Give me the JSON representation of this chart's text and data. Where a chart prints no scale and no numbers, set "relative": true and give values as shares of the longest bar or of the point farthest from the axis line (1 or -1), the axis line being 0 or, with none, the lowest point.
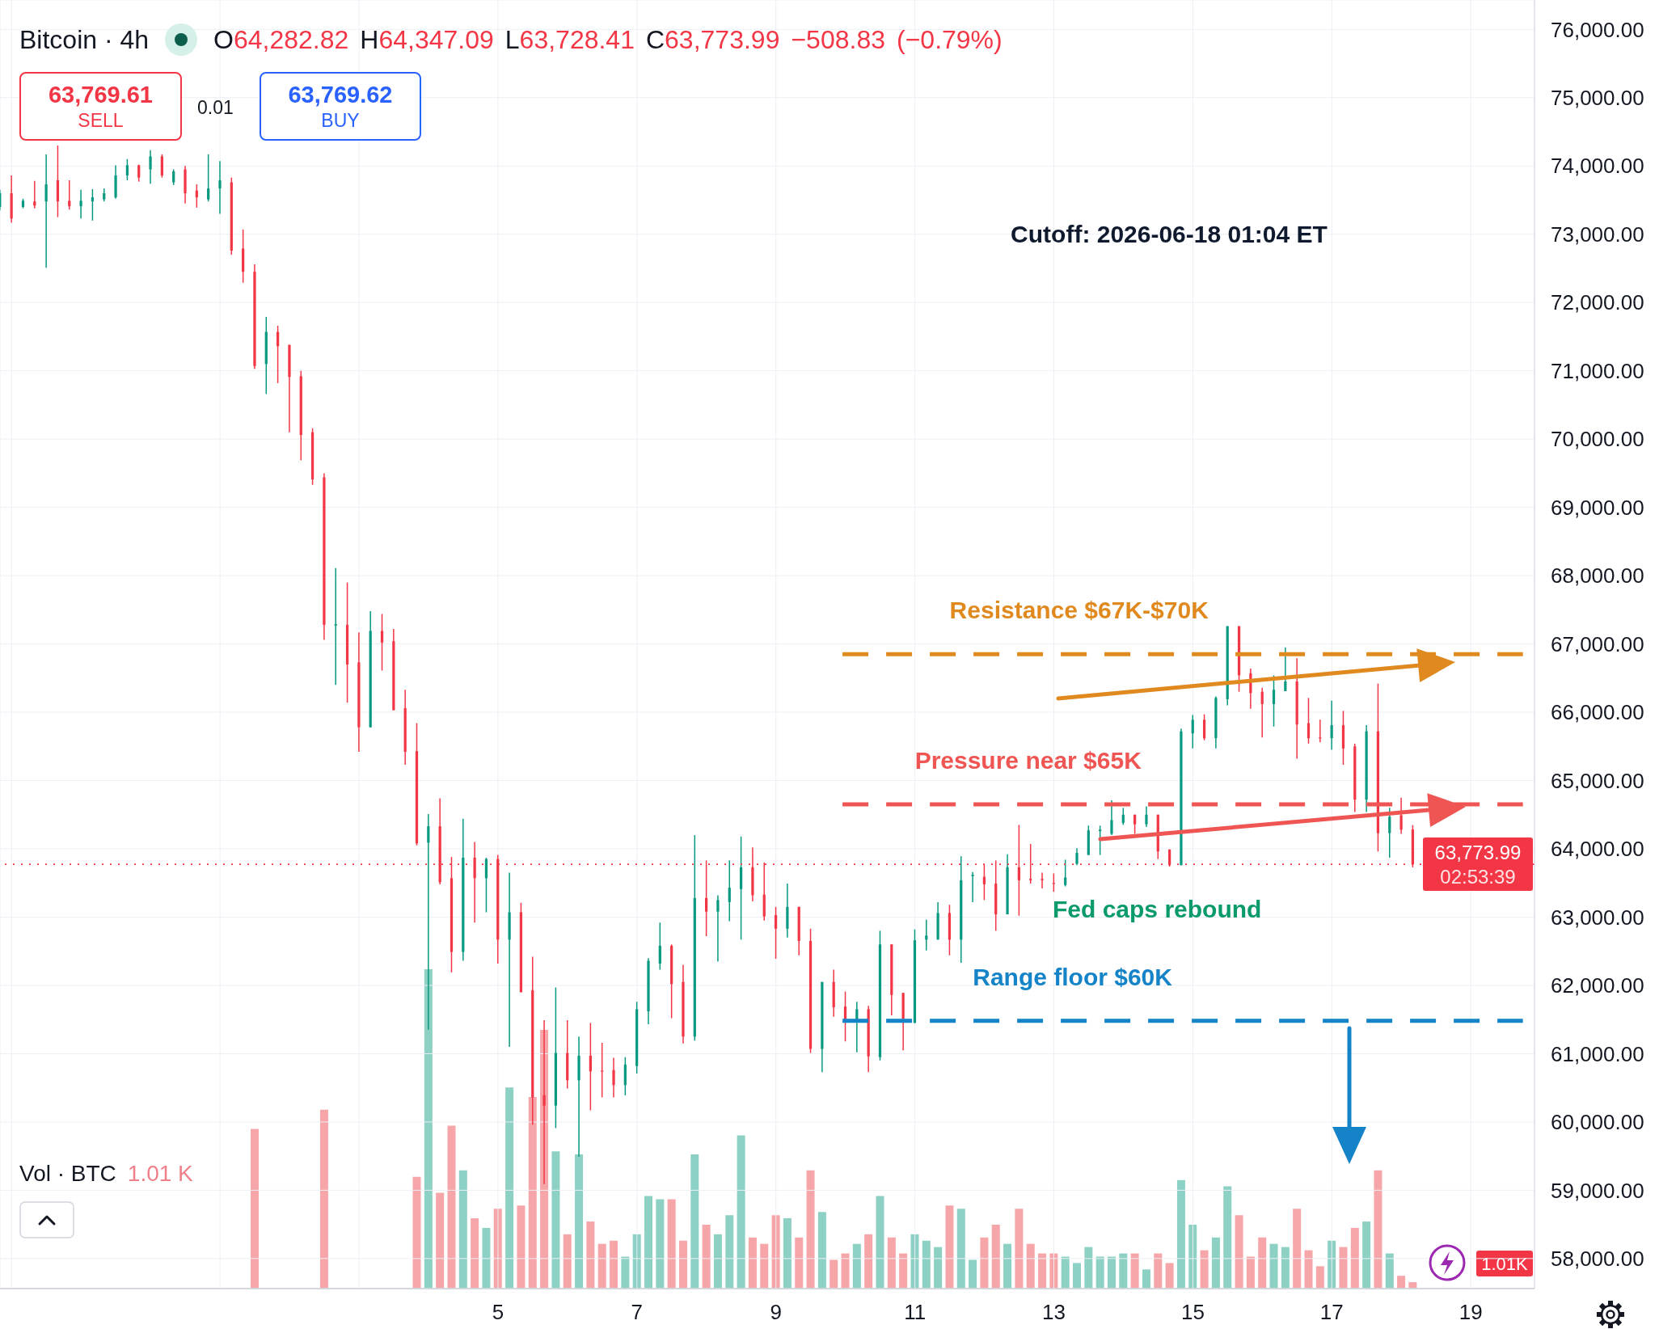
{
  "chart_data": [
    {
      "type": "candlestick",
      "title": "Bitcoin · 4h",
      "subtitle": "O64,282.82 H64,347.09 L63,728.41 C63,773.99 −508.83 (−0.79%)",
      "series": [
        {
          "type": "candlestick",
          "x": [
            "2026-05-28T20:00",
            "2026-05-29T00:00",
            "2026-05-29T04:00",
            "2026-05-29T08:00",
            "2026-05-29T12:00",
            "2026-05-29T16:00",
            "2026-05-29T20:00",
            "2026-05-30T00:00",
            "2026-05-30T04:00",
            "2026-05-30T08:00",
            "2026-05-30T12:00",
            "2026-05-30T16:00",
            "2026-05-30T20:00",
            "2026-05-31T00:00",
            "2026-05-31T04:00",
            "2026-05-31T08:00",
            "2026-05-31T12:00",
            "2026-05-31T16:00",
            "2026-05-31T20:00",
            "2026-06-01T00:00",
            "2026-06-01T04:00",
            "2026-06-01T08:00",
            "2026-06-01T12:00",
            "2026-06-01T16:00",
            "2026-06-01T20:00",
            "2026-06-02T00:00",
            "2026-06-02T04:00",
            "2026-06-02T08:00",
            "2026-06-02T12:00",
            "2026-06-02T16:00",
            "2026-06-02T20:00",
            "2026-06-03T00:00",
            "2026-06-03T04:00",
            "2026-06-03T08:00",
            "2026-06-03T12:00",
            "2026-06-03T16:00",
            "2026-06-03T20:00",
            "2026-06-04T00:00",
            "2026-06-04T04:00",
            "2026-06-04T08:00",
            "2026-06-04T12:00",
            "2026-06-04T16:00",
            "2026-06-04T20:00",
            "2026-06-05T00:00",
            "2026-06-05T04:00",
            "2026-06-05T08:00",
            "2026-06-05T12:00",
            "2026-06-05T16:00",
            "2026-06-05T20:00",
            "2026-06-06T00:00",
            "2026-06-06T04:00",
            "2026-06-06T08:00",
            "2026-06-06T12:00",
            "2026-06-06T16:00",
            "2026-06-06T20:00",
            "2026-06-07T00:00",
            "2026-06-07T04:00",
            "2026-06-07T08:00",
            "2026-06-07T12:00",
            "2026-06-07T16:00",
            "2026-06-07T20:00",
            "2026-06-08T00:00",
            "2026-06-08T04:00",
            "2026-06-08T08:00",
            "2026-06-08T12:00",
            "2026-06-08T16:00",
            "2026-06-08T20:00",
            "2026-06-09T00:00",
            "2026-06-09T04:00",
            "2026-06-09T08:00",
            "2026-06-09T12:00",
            "2026-06-09T16:00",
            "2026-06-09T20:00",
            "2026-06-10T00:00",
            "2026-06-10T04:00",
            "2026-06-10T08:00",
            "2026-06-10T12:00",
            "2026-06-10T16:00",
            "2026-06-10T20:00",
            "2026-06-11T00:00",
            "2026-06-11T04:00",
            "2026-06-11T08:00",
            "2026-06-11T12:00",
            "2026-06-11T16:00",
            "2026-06-11T20:00",
            "2026-06-12T00:00",
            "2026-06-12T04:00",
            "2026-06-12T08:00",
            "2026-06-12T12:00",
            "2026-06-12T16:00",
            "2026-06-12T20:00",
            "2026-06-13T00:00",
            "2026-06-13T04:00",
            "2026-06-13T08:00",
            "2026-06-13T12:00",
            "2026-06-13T16:00",
            "2026-06-13T20:00",
            "2026-06-14T00:00",
            "2026-06-14T04:00",
            "2026-06-14T08:00",
            "2026-06-14T12:00",
            "2026-06-14T16:00",
            "2026-06-14T20:00",
            "2026-06-15T00:00",
            "2026-06-15T04:00",
            "2026-06-15T08:00",
            "2026-06-15T12:00",
            "2026-06-15T16:00",
            "2026-06-15T20:00",
            "2026-06-16T00:00",
            "2026-06-16T04:00",
            "2026-06-16T08:00",
            "2026-06-16T12:00",
            "2026-06-16T16:00",
            "2026-06-16T20:00",
            "2026-06-17T00:00",
            "2026-06-17T04:00",
            "2026-06-17T08:00",
            "2026-06-17T12:00",
            "2026-06-17T16:00",
            "2026-06-17T20:00",
            "2026-06-18T00:00",
            "2026-06-18T04:00"
          ],
          "ohlc": [
            [
              73400,
              73650,
              73350,
              73600
            ],
            [
              73600,
              73860,
              73170,
              73230
            ],
            [
              73400,
              73520,
              73380,
              73490
            ],
            [
              73480,
              73780,
              73380,
              73420
            ],
            [
              73480,
              74170,
              72510,
              73730
            ],
            [
              73790,
              74300,
              73250,
              73480
            ],
            [
              73490,
              73790,
              73360,
              73410
            ],
            [
              73410,
              73650,
              73230,
              73490
            ],
            [
              73480,
              73660,
              73200,
              73540
            ],
            [
              73510,
              73670,
              73480,
              73600
            ],
            [
              73540,
              74010,
              73520,
              73860
            ],
            [
              73860,
              74100,
              73790,
              74010
            ],
            [
              74010,
              74020,
              73770,
              73830
            ],
            [
              73950,
              74230,
              73740,
              74140
            ],
            [
              74140,
              74170,
              73830,
              73860
            ],
            [
              73760,
              73950,
              73720,
              73920
            ],
            [
              73950,
              74000,
              73450,
              73600
            ],
            [
              73640,
              73730,
              73390,
              73540
            ],
            [
              73510,
              74170,
              73480,
              73670
            ],
            [
              73670,
              74070,
              73300,
              73790
            ],
            [
              73760,
              73830,
              72700,
              72760
            ],
            [
              72790,
              73070,
              72290,
              72450
            ],
            [
              72450,
              72560,
              71030,
              71070
            ],
            [
              71100,
              71790,
              70660,
              71570
            ],
            [
              71570,
              71660,
              70820,
              71360
            ],
            [
              71380,
              71380,
              70100,
              70910
            ],
            [
              70920,
              71000,
              69690,
              70060
            ],
            [
              70100,
              70160,
              69330,
              69410
            ],
            [
              69440,
              69500,
              67060,
              67280
            ],
            [
              67270,
              68110,
              66400,
              67290
            ],
            [
              67280,
              67900,
              66140,
              66700
            ],
            [
              66730,
              67170,
              65420,
              65780
            ],
            [
              65780,
              67480,
              65780,
              67190
            ],
            [
              67190,
              67440,
              66610,
              67020
            ],
            [
              67040,
              67220,
              66030,
              66030
            ],
            [
              66060,
              66330,
              65230,
              65420
            ],
            [
              65430,
              65840,
              64050,
              64080
            ],
            [
              64090,
              64510,
              61350,
              64330
            ],
            [
              64330,
              64740,
              63480,
              63510
            ],
            [
              63570,
              63880,
              62190,
              62490
            ],
            [
              62490,
              64440,
              62360,
              63870
            ],
            [
              63870,
              64100,
              62920,
              63570
            ],
            [
              63570,
              63870,
              63070,
              63850
            ],
            [
              63850,
              63910,
              62320,
              62670
            ],
            [
              62670,
              63650,
              61100,
              63070
            ],
            [
              63070,
              63210,
              61900,
              61900
            ],
            [
              61930,
              62420,
              59960,
              60360
            ],
            [
              60390,
              61490,
              59090,
              60240
            ],
            [
              60240,
              61970,
              59910,
              61010
            ],
            [
              61010,
              61490,
              60490,
              60610
            ],
            [
              60610,
              61250,
              59490,
              60970
            ],
            [
              60970,
              61450,
              60170,
              60740
            ],
            [
              60750,
              61160,
              60360,
              60740
            ],
            [
              60760,
              60940,
              60360,
              60540
            ],
            [
              60540,
              60950,
              60390,
              60840
            ],
            [
              60820,
              61760,
              60710,
              61650
            ],
            [
              61620,
              62400,
              61430,
              62360
            ],
            [
              62320,
              62920,
              62230,
              62580
            ],
            [
              62580,
              62600,
              61520,
              62020
            ],
            [
              62050,
              62300,
              61150,
              61250
            ],
            [
              61250,
              64200,
              61190,
              63280
            ],
            [
              63280,
              63830,
              62720,
              63080
            ],
            [
              63080,
              63320,
              62350,
              63250
            ],
            [
              63220,
              63830,
              62940,
              63430
            ],
            [
              63410,
              64180,
              62670,
              63730
            ],
            [
              63730,
              64020,
              63230,
              63320
            ],
            [
              63330,
              63800,
              62950,
              63010
            ],
            [
              63030,
              63150,
              62390,
              62830
            ],
            [
              62830,
              63490,
              62700,
              63150
            ],
            [
              63150,
              63150,
              62440,
              62650
            ],
            [
              62650,
              62830,
              61010,
              61070
            ],
            [
              61070,
              62050,
              60730,
              62050
            ],
            [
              62050,
              62230,
              61540,
              61680
            ],
            [
              61690,
              61910,
              61180,
              61480
            ],
            [
              61480,
              61760,
              61020,
              61650
            ],
            [
              61650,
              61700,
              60730,
              60960
            ],
            [
              60950,
              62800,
              60900,
              62600
            ],
            [
              62600,
              62600,
              61560,
              61860
            ],
            [
              61890,
              61890,
              61050,
              61510
            ],
            [
              61450,
              62820,
              61450,
              62660
            ],
            [
              62670,
              62960,
              62510,
              62730
            ],
            [
              62670,
              63220,
              62670,
              63060
            ],
            [
              63060,
              63180,
              62440,
              62670
            ],
            [
              62670,
              63890,
              62330,
              63540
            ],
            [
              63600,
              63660,
              63220,
              63620
            ],
            [
              63590,
              63770,
              63250,
              63480
            ],
            [
              63490,
              63830,
              62800,
              63040
            ],
            [
              63040,
              63920,
              63040,
              63730
            ],
            [
              63730,
              64350,
              63020,
              63540
            ],
            [
              63560,
              64070,
              63490,
              63540
            ],
            [
              63560,
              63650,
              63420,
              63540
            ],
            [
              63500,
              63640,
              63370,
              63490
            ],
            [
              63470,
              63840,
              63450,
              63580
            ],
            [
              63780,
              64010,
              63760,
              63940
            ],
            [
              63910,
              64340,
              63910,
              64270
            ],
            [
              64260,
              64340,
              63910,
              64280
            ],
            [
              64220,
              64710,
              64200,
              64420
            ],
            [
              64380,
              64600,
              64350,
              64500
            ],
            [
              64500,
              64500,
              64220,
              64360
            ],
            [
              64360,
              64620,
              64320,
              64500
            ],
            [
              64500,
              64500,
              63850,
              63960
            ],
            [
              63990,
              63990,
              63740,
              63760
            ],
            [
              63760,
              65760,
              63760,
              65720
            ],
            [
              65690,
              65960,
              65470,
              65890
            ],
            [
              65890,
              65970,
              65590,
              65620
            ],
            [
              65620,
              66230,
              65470,
              66210
            ],
            [
              66190,
              67260,
              66100,
              67260
            ],
            [
              67260,
              67260,
              66300,
              66540
            ],
            [
              66570,
              66640,
              66050,
              66280
            ],
            [
              66300,
              66360,
              65630,
              66120
            ],
            [
              66120,
              66540,
              65790,
              66330
            ],
            [
              66310,
              66950,
              66310,
              66450
            ],
            [
              66450,
              66790,
              65320,
              65820
            ],
            [
              65840,
              66210,
              65540,
              65620
            ],
            [
              65630,
              65890,
              65560,
              65620
            ],
            [
              65620,
              66170,
              65450,
              65810
            ],
            [
              65810,
              66020,
              65230,
              65470
            ],
            [
              65500,
              65540,
              64540,
              64720
            ],
            [
              64720,
              65810,
              64540,
              65720
            ],
            [
              65720,
              66420,
              63960,
              64230
            ],
            [
              64230,
              64600,
              63870,
              64470
            ],
            [
              64490,
              64750,
              64220,
              64280
            ],
            [
              64282.82,
              64347.09,
              63728.41,
              63773.99
            ]
          ],
          "colors": [
            "#089981",
            "#f23645",
            "#089981",
            "#f23645",
            "#089981",
            "#f23645",
            "#f23645",
            "#089981",
            "#089981",
            "#089981",
            "#089981",
            "#089981",
            "#f23645",
            "#089981",
            "#f23645",
            "#089981",
            "#f23645",
            "#f23645",
            "#089981",
            "#089981",
            "#f23645",
            "#f23645",
            "#f23645",
            "#089981",
            "#f23645",
            "#f23645",
            "#f23645",
            "#f23645",
            "#f23645",
            "#089981",
            "#f23645",
            "#f23645",
            "#089981",
            "#f23645",
            "#f23645",
            "#f23645",
            "#f23645",
            "#089981",
            "#f23645",
            "#f23645",
            "#089981",
            "#f23645",
            "#089981",
            "#f23645",
            "#089981",
            "#f23645",
            "#f23645",
            "#f23645",
            "#089981",
            "#f23645",
            "#089981",
            "#f23645",
            "#f23645",
            "#f23645",
            "#089981",
            "#089981",
            "#089981",
            "#089981",
            "#f23645",
            "#f23645",
            "#089981",
            "#f23645",
            "#089981",
            "#089981",
            "#089981",
            "#f23645",
            "#f23645",
            "#f23645",
            "#089981",
            "#f23645",
            "#f23645",
            "#089981",
            "#f23645",
            "#f23645",
            "#089981",
            "#f23645",
            "#089981",
            "#f23645",
            "#f23645",
            "#089981",
            "#089981",
            "#089981",
            "#f23645",
            "#089981",
            "#089981",
            "#f23645",
            "#f23645",
            "#089981",
            "#f23645",
            "#f23645",
            "#f23645",
            "#f23645",
            "#089981",
            "#089981",
            "#089981",
            "#089981",
            "#089981",
            "#089981",
            "#f23645",
            "#089981",
            "#f23645",
            "#f23645",
            "#089981",
            "#089981",
            "#f23645",
            "#089981",
            "#089981",
            "#f23645",
            "#f23645",
            "#f23645",
            "#089981",
            "#089981",
            "#f23645",
            "#f23645",
            "#f23645",
            "#089981",
            "#f23645",
            "#f23645",
            "#089981",
            "#f23645",
            "#089981",
            "#f23645",
            "#f23645"
          ]
        },
        {
          "type": "line",
          "x": [
            "2026-06-09T23:00",
            "2026-06-19T18:00"
          ],
          "values": [
            66850,
            66850
          ],
          "color": "#e0891f",
          "line_style": "dashed"
        },
        {
          "type": "line",
          "x": [
            "2026-06-09T23:00",
            "2026-06-19T18:00"
          ],
          "values": [
            64650,
            64650
          ],
          "color": "#ef5552",
          "line_style": "dashed"
        },
        {
          "type": "line",
          "x": [
            "2026-06-09T23:00",
            "2026-06-19T18:00"
          ],
          "values": [
            61480,
            61480
          ],
          "color": "#1583c7",
          "line_style": "dashed"
        }
      ],
      "xlim": [
        "2026-05-28T20:00",
        "2026-06-19T22:00"
      ],
      "xticks": [
        {
          "value": "2026-05-29",
          "label": null
        },
        {
          "value": "2026-06-01",
          "label": null
        },
        {
          "value": "2026-06-03",
          "label": null
        },
        {
          "value": "2026-06-05",
          "label": "5"
        },
        {
          "value": "2026-06-07",
          "label": "7"
        },
        {
          "value": "2026-06-09",
          "label": "9"
        },
        {
          "value": "2026-06-11",
          "label": "11"
        },
        {
          "value": "2026-06-13",
          "label": "13"
        },
        {
          "value": "2026-06-15",
          "label": "15"
        },
        {
          "value": "2026-06-17",
          "label": "17"
        },
        {
          "value": "2026-06-19",
          "label": "19"
        }
      ],
      "ylim": [
        57560,
        76430
      ],
      "yticks": [
        {
          "value": 58000,
          "label": "58,000.00"
        },
        {
          "value": 59000,
          "label": "59,000.00"
        },
        {
          "value": 60000,
          "label": "60,000.00"
        },
        {
          "value": 61000,
          "label": "61,000.00"
        },
        {
          "value": 62000,
          "label": "62,000.00"
        },
        {
          "value": 63000,
          "label": "63,000.00"
        },
        {
          "value": 64000,
          "label": "64,000.00"
        },
        {
          "value": 65000,
          "label": "65,000.00"
        },
        {
          "value": 66000,
          "label": "66,000.00"
        },
        {
          "value": 67000,
          "label": "67,000.00"
        },
        {
          "value": 68000,
          "label": "68,000.00"
        },
        {
          "value": 69000,
          "label": "69,000.00"
        },
        {
          "value": 70000,
          "label": "70,000.00"
        },
        {
          "value": 71000,
          "label": "71,000.00"
        },
        {
          "value": 72000,
          "label": "72,000.00"
        },
        {
          "value": 73000,
          "label": "73,000.00"
        },
        {
          "value": 74000,
          "label": "74,000.00"
        },
        {
          "value": 75000,
          "label": "75,000.00"
        },
        {
          "value": 76000,
          "label": "76,000.00"
        }
      ],
      "grid": true,
      "ref_lines": [
        {
          "axis": "y",
          "value": 63773.99,
          "label": "63,773.99",
          "color": "#f23645",
          "line_style": "dotted"
        }
      ],
      "annotations": [
        "Cutoff: 2026-06-18 01:04 ET",
        "Fed caps rebound",
        {
          "text": "Resistance $67K-$70K",
          "x": "2026-06-11T12:00",
          "y": 66850
        },
        {
          "text": "Pressure near $65K",
          "x": "2026-06-11T00:00",
          "y": 64650
        },
        {
          "text": "Range floor $60K",
          "x": "2026-06-11T20:00",
          "y": 61480
        },
        "02:53:39",
        "63,769.61",
        "SELL",
        "0.01",
        "63,769.62",
        "BUY"
      ]
    },
    {
      "type": "bar",
      "title": "Vol · BTC",
      "relative": true,
      "tick_labels": false,
      "xlim": [
        "2026-05-28T20:00",
        "2026-06-19T22:00"
      ],
      "x": [
        "2026-06-01T12:00",
        "2026-06-02T12:00",
        "2026-06-03T20:00",
        "2026-06-04T00:00",
        "2026-06-04T04:00",
        "2026-06-04T08:00",
        "2026-06-04T12:00",
        "2026-06-04T16:00",
        "2026-06-04T20:00",
        "2026-06-05T00:00",
        "2026-06-05T04:00",
        "2026-06-05T08:00",
        "2026-06-05T12:00",
        "2026-06-05T16:00",
        "2026-06-05T20:00",
        "2026-06-06T00:00",
        "2026-06-06T04:00",
        "2026-06-06T08:00",
        "2026-06-06T12:00",
        "2026-06-06T16:00",
        "2026-06-06T20:00",
        "2026-06-07T00:00",
        "2026-06-07T04:00",
        "2026-06-07T08:00",
        "2026-06-07T12:00",
        "2026-06-07T16:00",
        "2026-06-07T20:00",
        "2026-06-08T00:00",
        "2026-06-08T04:00",
        "2026-06-08T08:00",
        "2026-06-08T12:00",
        "2026-06-08T16:00",
        "2026-06-08T20:00",
        "2026-06-09T00:00",
        "2026-06-09T04:00",
        "2026-06-09T08:00",
        "2026-06-09T12:00",
        "2026-06-09T16:00",
        "2026-06-09T20:00",
        "2026-06-10T00:00",
        "2026-06-10T04:00",
        "2026-06-10T08:00",
        "2026-06-10T12:00",
        "2026-06-10T16:00",
        "2026-06-10T20:00",
        "2026-06-11T00:00",
        "2026-06-11T04:00",
        "2026-06-11T08:00",
        "2026-06-11T12:00",
        "2026-06-11T16:00",
        "2026-06-11T20:00",
        "2026-06-12T00:00",
        "2026-06-12T04:00",
        "2026-06-12T08:00",
        "2026-06-12T12:00",
        "2026-06-12T16:00",
        "2026-06-12T20:00",
        "2026-06-13T00:00",
        "2026-06-13T04:00",
        "2026-06-13T08:00",
        "2026-06-13T12:00",
        "2026-06-13T16:00",
        "2026-06-13T20:00",
        "2026-06-14T00:00",
        "2026-06-14T04:00",
        "2026-06-14T08:00",
        "2026-06-14T12:00",
        "2026-06-14T16:00",
        "2026-06-14T20:00",
        "2026-06-15T00:00",
        "2026-06-15T04:00",
        "2026-06-15T08:00",
        "2026-06-15T12:00",
        "2026-06-15T16:00",
        "2026-06-15T20:00",
        "2026-06-16T00:00",
        "2026-06-16T04:00",
        "2026-06-16T08:00",
        "2026-06-16T12:00",
        "2026-06-16T16:00",
        "2026-06-16T20:00",
        "2026-06-17T00:00",
        "2026-06-17T04:00",
        "2026-06-17T08:00",
        "2026-06-17T12:00",
        "2026-06-17T16:00",
        "2026-06-17T20:00",
        "2026-06-18T00:00",
        "2026-06-18T04:00"
      ],
      "values": [
        0.5,
        0.56,
        0.35,
        1,
        0.3,
        0.51,
        0.37,
        0.22,
        0.19,
        0.25,
        0.63,
        0.26,
        0.6,
        0.81,
        0.43,
        0.17,
        0.42,
        0.21,
        0.14,
        0.15,
        0.1,
        0.17,
        0.29,
        0.28,
        0.28,
        0.15,
        0.42,
        0.2,
        0.17,
        0.23,
        0.48,
        0.16,
        0.14,
        0.23,
        0.22,
        0.16,
        0.37,
        0.24,
        0.09,
        0.11,
        0.14,
        0.17,
        0.29,
        0.16,
        0.11,
        0.17,
        0.15,
        0.13,
        0.26,
        0.25,
        0.09,
        0.16,
        0.2,
        0.14,
        0.25,
        0.14,
        0.11,
        0.11,
        0.1,
        0.08,
        0.13,
        0.1,
        0.1,
        0.11,
        0.11,
        0.06,
        0.11,
        0.08,
        0.34,
        0.2,
        0.12,
        0.16,
        0.32,
        0.23,
        0.1,
        0.16,
        0.14,
        0.13,
        0.25,
        0.12,
        0.07,
        0.15,
        0.13,
        0.19,
        0.21,
        0.37,
        0.11,
        0.04,
        0.02
      ],
      "colors": [
        "#f6a5a8",
        "#f6a5a8",
        "#f6a5a8",
        "#8dd0c4",
        "#f6a5a8",
        "#f6a5a8",
        "#8dd0c4",
        "#f6a5a8",
        "#8dd0c4",
        "#f6a5a8",
        "#8dd0c4",
        "#f6a5a8",
        "#f6a5a8",
        "#f6a5a8",
        "#8dd0c4",
        "#f6a5a8",
        "#8dd0c4",
        "#f6a5a8",
        "#f6a5a8",
        "#f6a5a8",
        "#8dd0c4",
        "#8dd0c4",
        "#8dd0c4",
        "#8dd0c4",
        "#f6a5a8",
        "#f6a5a8",
        "#8dd0c4",
        "#f6a5a8",
        "#8dd0c4",
        "#8dd0c4",
        "#8dd0c4",
        "#f6a5a8",
        "#f6a5a8",
        "#f6a5a8",
        "#8dd0c4",
        "#f6a5a8",
        "#f6a5a8",
        "#8dd0c4",
        "#f6a5a8",
        "#f6a5a8",
        "#8dd0c4",
        "#f6a5a8",
        "#8dd0c4",
        "#f6a5a8",
        "#f6a5a8",
        "#8dd0c4",
        "#8dd0c4",
        "#8dd0c4",
        "#f6a5a8",
        "#8dd0c4",
        "#8dd0c4",
        "#f6a5a8",
        "#f6a5a8",
        "#8dd0c4",
        "#f6a5a8",
        "#f6a5a8",
        "#f6a5a8",
        "#f6a5a8",
        "#8dd0c4",
        "#8dd0c4",
        "#8dd0c4",
        "#8dd0c4",
        "#8dd0c4",
        "#8dd0c4",
        "#f6a5a8",
        "#8dd0c4",
        "#f6a5a8",
        "#f6a5a8",
        "#8dd0c4",
        "#8dd0c4",
        "#f6a5a8",
        "#8dd0c4",
        "#8dd0c4",
        "#f6a5a8",
        "#f6a5a8",
        "#f6a5a8",
        "#8dd0c4",
        "#8dd0c4",
        "#f6a5a8",
        "#f6a5a8",
        "#f6a5a8",
        "#8dd0c4",
        "#f6a5a8",
        "#f6a5a8",
        "#8dd0c4",
        "#f6a5a8",
        "#8dd0c4",
        "#f6a5a8",
        "#f6a5a8"
      ],
      "annotations": [
        "1.01 K",
        "1.01K"
      ]
    }
  ]
}
